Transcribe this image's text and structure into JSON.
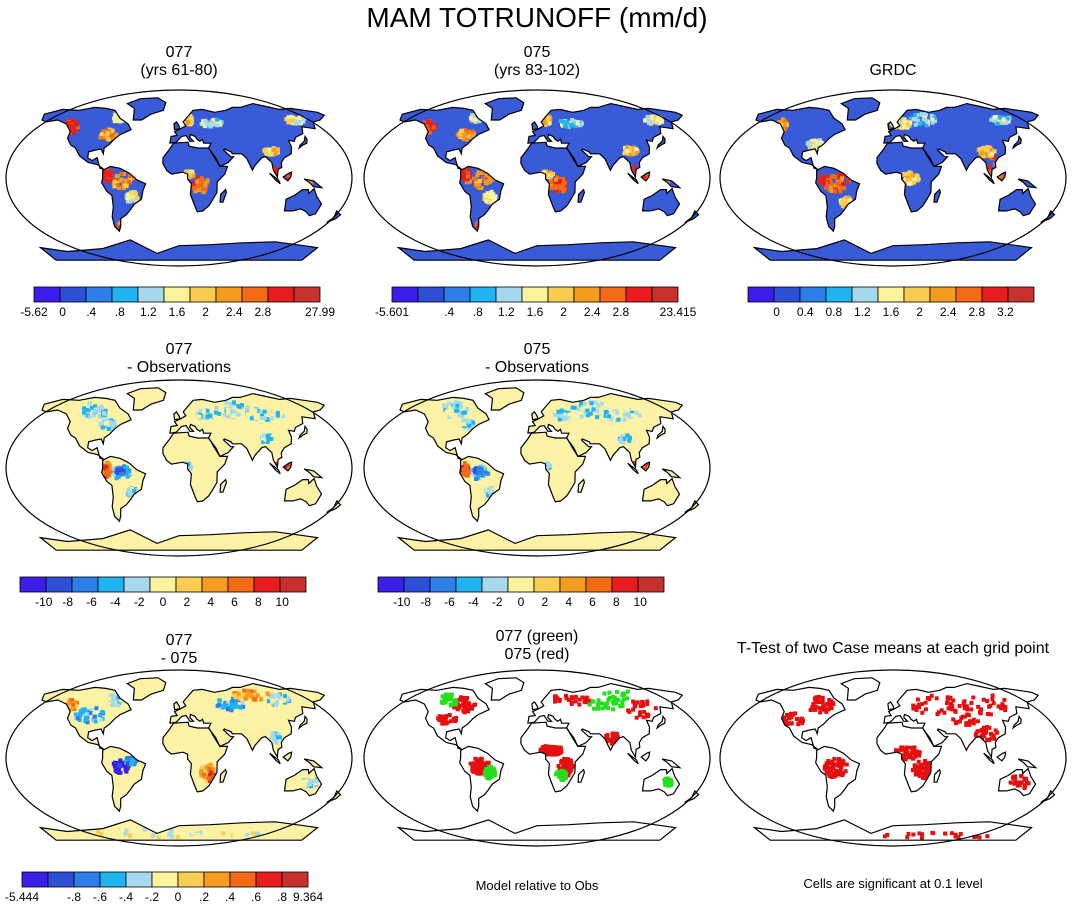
{
  "title": "MAM TOTRUNOFF (mm/d)",
  "colors": {
    "palette_12": [
      "#3b1ee8",
      "#2f4fd6",
      "#2e7ee8",
      "#1fb4f0",
      "#a7d9ee",
      "#fbf39b",
      "#f8cd52",
      "#f59b1d",
      "#f26a14",
      "#e81e1e",
      "#c8322e"
    ],
    "land_base": "#3a5bd8",
    "diff_base": "#fbf2a6",
    "green": "#22e01c",
    "red": "#e60f0f"
  },
  "panels": [
    {
      "id": "p1",
      "title_lines": [
        "077",
        "(yrs 61-80)"
      ],
      "kind": "abs",
      "colorbar": "cb1"
    },
    {
      "id": "p2",
      "title_lines": [
        "075",
        "(yrs 83-102)"
      ],
      "kind": "abs",
      "colorbar": "cb2"
    },
    {
      "id": "p3",
      "title_lines": [
        "",
        "GRDC"
      ],
      "kind": "obs",
      "colorbar": "cb3"
    },
    {
      "id": "p4",
      "title_lines": [
        "077",
        "- Observations"
      ],
      "kind": "diff",
      "colorbar": "cb4"
    },
    {
      "id": "p5",
      "title_lines": [
        "075",
        "- Observations"
      ],
      "kind": "diff",
      "colorbar": "cb5"
    },
    {
      "id": "p6",
      "title_lines": [
        "077",
        "- 075"
      ],
      "kind": "diff2",
      "colorbar": "cb6"
    },
    {
      "id": "p7",
      "title_lines": [
        "077 (green)",
        "075 (red)"
      ],
      "kind": "green_red",
      "colorbar": null
    },
    {
      "id": "p8",
      "title_lines": [
        "",
        "T-Test of two Case means at each grid point"
      ],
      "kind": "ttest",
      "colorbar": null
    }
  ],
  "colorbars": {
    "cb1": {
      "labels": [
        "-5.62",
        "0",
        ".4",
        ".8",
        "1.2",
        "1.6",
        "2",
        "2.4",
        "2.8",
        "",
        "27.99"
      ]
    },
    "cb2": {
      "labels": [
        "-5.601",
        "",
        ".4",
        ".8",
        "1.2",
        "1.6",
        "2",
        "2.4",
        "2.8",
        "",
        "23.415"
      ]
    },
    "cb3": {
      "labels": [
        "",
        "0",
        "0.4",
        "0.8",
        "1.2",
        "1.6",
        "2",
        "2.4",
        "2.8",
        "3.2",
        ""
      ]
    },
    "cb4": {
      "labels": [
        "",
        "-10",
        "-8",
        "-6",
        "-4",
        "-2",
        "0",
        "2",
        "4",
        "6",
        "8",
        "10",
        ""
      ]
    },
    "cb5": {
      "labels": [
        "",
        "-10",
        "-8",
        "-6",
        "-4",
        "-2",
        "0",
        "2",
        "4",
        "6",
        "8",
        "10",
        ""
      ]
    },
    "cb6": {
      "labels": [
        "-5.444",
        "",
        "-.8",
        "-.6",
        "-.4",
        "-.2",
        "0",
        ".2",
        ".4",
        ".6",
        ".8",
        "9.364"
      ]
    }
  },
  "notes": {
    "model_relative": "Model relative to Obs",
    "significance": "Cells are significant at 0.1 level"
  }
}
